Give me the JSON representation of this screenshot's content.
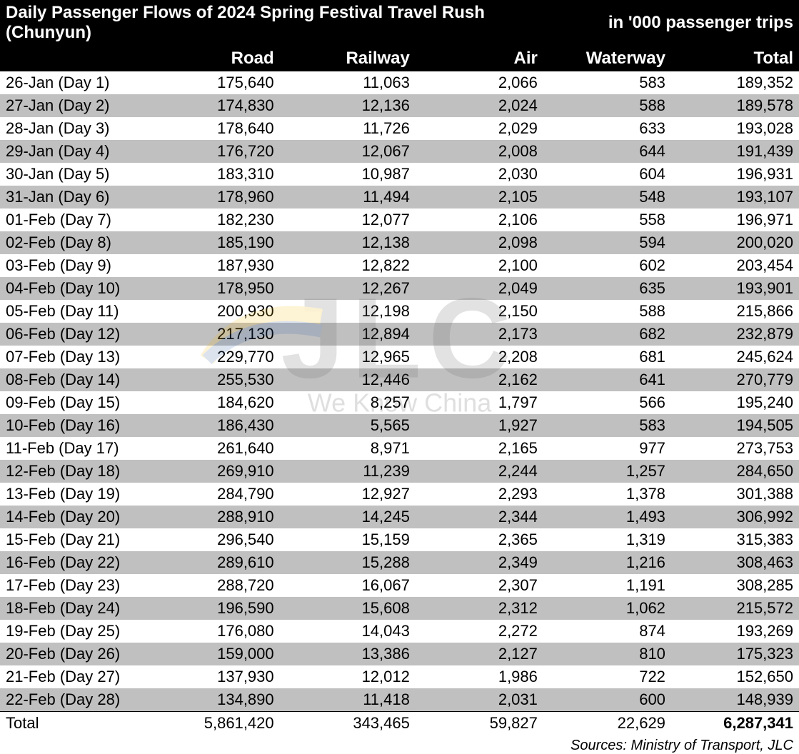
{
  "title_left": "Daily Passenger Flows of 2024 Spring Festival Travel Rush (Chunyun)",
  "title_right": "in '000 passenger trips",
  "columns": [
    "",
    "Road",
    "Railway",
    "Air",
    "Waterway",
    "Total"
  ],
  "rows": [
    {
      "date": "26-Jan (Day 1)",
      "road": "175,640",
      "railway": "11,063",
      "air": "2,066",
      "waterway": "583",
      "total": "189,352"
    },
    {
      "date": "27-Jan (Day 2)",
      "road": "174,830",
      "railway": "12,136",
      "air": "2,024",
      "waterway": "588",
      "total": "189,578"
    },
    {
      "date": "28-Jan (Day 3)",
      "road": "178,640",
      "railway": "11,726",
      "air": "2,029",
      "waterway": "633",
      "total": "193,028"
    },
    {
      "date": "29-Jan (Day 4)",
      "road": "176,720",
      "railway": "12,067",
      "air": "2,008",
      "waterway": "644",
      "total": "191,439"
    },
    {
      "date": "30-Jan (Day 5)",
      "road": "183,310",
      "railway": "10,987",
      "air": "2,030",
      "waterway": "604",
      "total": "196,931"
    },
    {
      "date": "31-Jan (Day 6)",
      "road": "178,960",
      "railway": "11,494",
      "air": "2,105",
      "waterway": "548",
      "total": "193,107"
    },
    {
      "date": "01-Feb (Day 7)",
      "road": "182,230",
      "railway": "12,077",
      "air": "2,106",
      "waterway": "558",
      "total": "196,971"
    },
    {
      "date": "02-Feb (Day 8)",
      "road": "185,190",
      "railway": "12,138",
      "air": "2,098",
      "waterway": "594",
      "total": "200,020"
    },
    {
      "date": "03-Feb (Day 9)",
      "road": "187,930",
      "railway": "12,822",
      "air": "2,100",
      "waterway": "602",
      "total": "203,454"
    },
    {
      "date": "04-Feb (Day 10)",
      "road": "178,950",
      "railway": "12,267",
      "air": "2,049",
      "waterway": "635",
      "total": "193,901"
    },
    {
      "date": "05-Feb (Day 11)",
      "road": "200,930",
      "railway": "12,198",
      "air": "2,150",
      "waterway": "588",
      "total": "215,866"
    },
    {
      "date": "06-Feb (Day 12)",
      "road": "217,130",
      "railway": "12,894",
      "air": "2,173",
      "waterway": "682",
      "total": "232,879"
    },
    {
      "date": "07-Feb (Day 13)",
      "road": "229,770",
      "railway": "12,965",
      "air": "2,208",
      "waterway": "681",
      "total": "245,624"
    },
    {
      "date": "08-Feb (Day 14)",
      "road": "255,530",
      "railway": "12,446",
      "air": "2,162",
      "waterway": "641",
      "total": "270,779"
    },
    {
      "date": "09-Feb (Day 15)",
      "road": "184,620",
      "railway": "8,257",
      "air": "1,797",
      "waterway": "566",
      "total": "195,240"
    },
    {
      "date": "10-Feb (Day 16)",
      "road": "186,430",
      "railway": "5,565",
      "air": "1,927",
      "waterway": "583",
      "total": "194,505"
    },
    {
      "date": "11-Feb (Day 17)",
      "road": "261,640",
      "railway": "8,971",
      "air": "2,165",
      "waterway": "977",
      "total": "273,753"
    },
    {
      "date": "12-Feb (Day 18)",
      "road": "269,910",
      "railway": "11,239",
      "air": "2,244",
      "waterway": "1,257",
      "total": "284,650"
    },
    {
      "date": "13-Feb (Day 19)",
      "road": "284,790",
      "railway": "12,927",
      "air": "2,293",
      "waterway": "1,378",
      "total": "301,388"
    },
    {
      "date": "14-Feb (Day 20)",
      "road": "288,910",
      "railway": "14,245",
      "air": "2,344",
      "waterway": "1,493",
      "total": "306,992"
    },
    {
      "date": "15-Feb (Day 21)",
      "road": "296,540",
      "railway": "15,159",
      "air": "2,365",
      "waterway": "1,319",
      "total": "315,383"
    },
    {
      "date": "16-Feb (Day 22)",
      "road": "289,610",
      "railway": "15,288",
      "air": "2,349",
      "waterway": "1,216",
      "total": "308,463"
    },
    {
      "date": "17-Feb (Day 23)",
      "road": "288,720",
      "railway": "16,067",
      "air": "2,307",
      "waterway": "1,191",
      "total": "308,285"
    },
    {
      "date": "18-Feb (Day 24)",
      "road": "196,590",
      "railway": "15,608",
      "air": "2,312",
      "waterway": "1,062",
      "total": "215,572"
    },
    {
      "date": "19-Feb (Day 25)",
      "road": "176,080",
      "railway": "14,043",
      "air": "2,272",
      "waterway": "874",
      "total": "193,269"
    },
    {
      "date": "20-Feb (Day 26)",
      "road": "159,000",
      "railway": "13,386",
      "air": "2,127",
      "waterway": "810",
      "total": "175,323"
    },
    {
      "date": "21-Feb (Day 27)",
      "road": "137,930",
      "railway": "12,012",
      "air": "1,986",
      "waterway": "722",
      "total": "152,650"
    },
    {
      "date": "22-Feb (Day 28)",
      "road": "134,890",
      "railway": "11,418",
      "air": "2,031",
      "waterway": "600",
      "total": "148,939"
    }
  ],
  "total_row": {
    "label": "Total",
    "road": "5,861,420",
    "railway": "343,465",
    "air": "59,827",
    "waterway": "22,629",
    "total": "6,287,341"
  },
  "sources": "Sources: Ministry of Transport, JLC",
  "watermark": {
    "big": "JLC",
    "tag": "We Know China"
  },
  "style": {
    "header_bg": "#000000",
    "header_fg": "#ffffff",
    "row_odd_bg": "#ffffff",
    "row_even_bg": "#c0c0c0",
    "font_family": "Arial",
    "title_fontsize": 24,
    "body_fontsize": 22,
    "sources_fontsize": 20
  }
}
